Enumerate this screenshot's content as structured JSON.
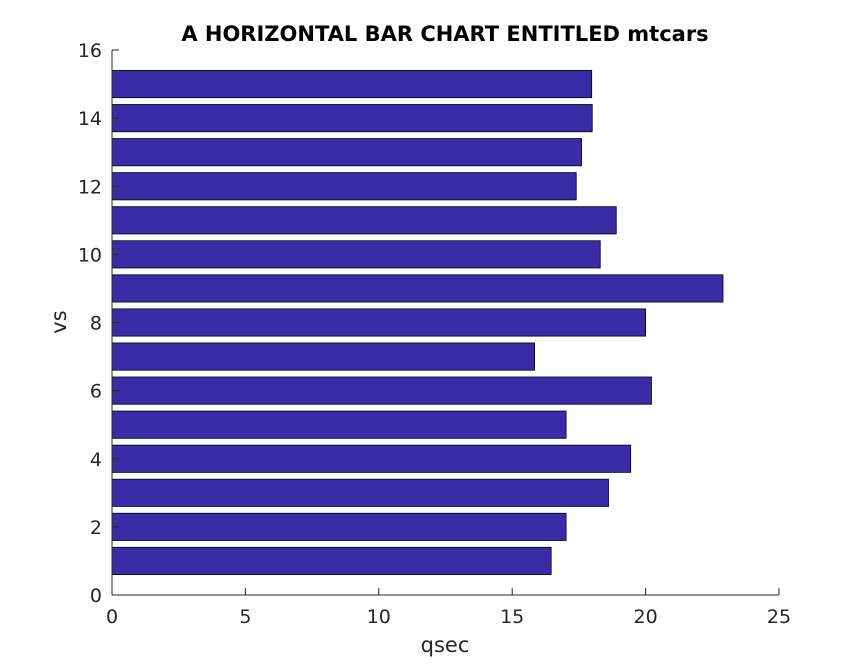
{
  "chart_data": {
    "type": "bar",
    "orientation": "horizontal",
    "title": "A HORIZONTAL BAR CHART ENTITLED mtcars",
    "xlabel": "qsec",
    "ylabel": "vs",
    "xlim": [
      0,
      25
    ],
    "ylim": [
      0,
      16
    ],
    "xticks": [
      0,
      5,
      10,
      15,
      20,
      25
    ],
    "yticks": [
      0,
      2,
      4,
      6,
      8,
      10,
      12,
      14,
      16
    ],
    "categories": [
      1,
      2,
      3,
      4,
      5,
      6,
      7,
      8,
      9,
      10,
      11,
      12,
      13,
      14,
      15
    ],
    "values": [
      16.46,
      17.02,
      18.61,
      19.44,
      17.02,
      20.22,
      15.84,
      20.0,
      22.9,
      18.3,
      18.9,
      17.4,
      17.6,
      18.0,
      17.98
    ],
    "bar_color": "#3b2ba6",
    "grid": false
  }
}
